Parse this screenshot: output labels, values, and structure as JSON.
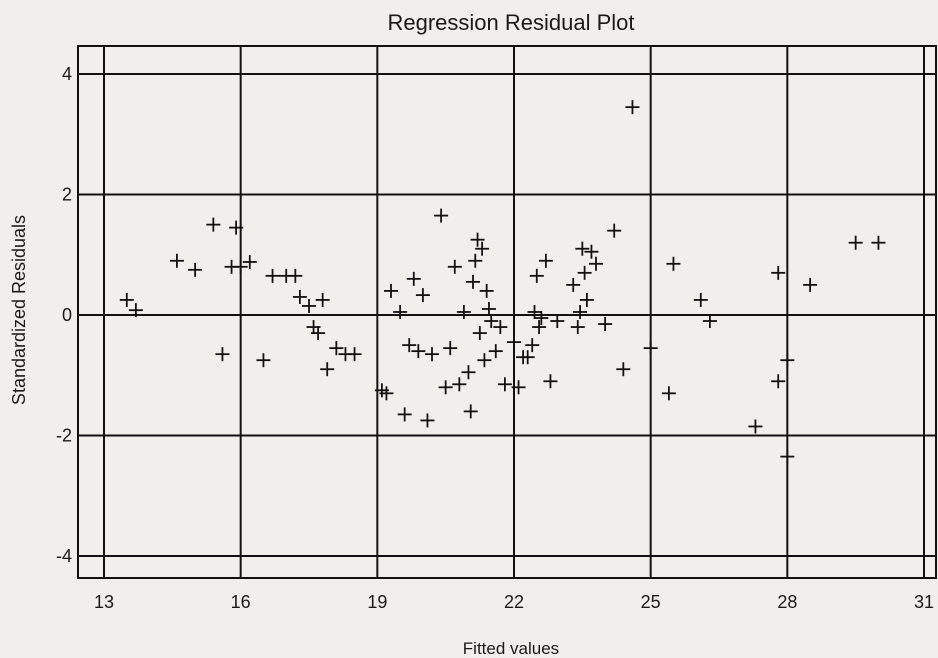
{
  "chart_data": {
    "type": "scatter",
    "title": "Regression Residual Plot",
    "xlabel": "Fitted values",
    "ylabel": "Standardized Residuals",
    "xlim": [
      13,
      31
    ],
    "ylim": [
      -4.8,
      4.8
    ],
    "xticks": [
      13,
      16,
      19,
      22,
      25,
      28,
      31
    ],
    "yticks": [
      -4,
      -2,
      0,
      2,
      4
    ],
    "grid": true,
    "marker": "plus",
    "colors": {
      "background": "#f1efeb",
      "ink": "#111111"
    },
    "points": [
      {
        "x": 13.5,
        "y": 0.25
      },
      {
        "x": 13.7,
        "y": 0.08
      },
      {
        "x": 14.6,
        "y": 0.9
      },
      {
        "x": 15.0,
        "y": 0.75
      },
      {
        "x": 15.4,
        "y": 1.5
      },
      {
        "x": 15.6,
        "y": -0.65
      },
      {
        "x": 15.8,
        "y": 0.8
      },
      {
        "x": 15.9,
        "y": 1.45
      },
      {
        "x": 16.0,
        "y": 0.8
      },
      {
        "x": 16.2,
        "y": 0.88
      },
      {
        "x": 16.5,
        "y": -0.75
      },
      {
        "x": 16.7,
        "y": 0.65
      },
      {
        "x": 17.0,
        "y": 0.65
      },
      {
        "x": 17.2,
        "y": 0.65
      },
      {
        "x": 17.3,
        "y": 0.3
      },
      {
        "x": 17.5,
        "y": 0.15
      },
      {
        "x": 17.6,
        "y": -0.2
      },
      {
        "x": 17.7,
        "y": -0.3
      },
      {
        "x": 17.8,
        "y": 0.25
      },
      {
        "x": 17.9,
        "y": -0.9
      },
      {
        "x": 18.1,
        "y": -0.55
      },
      {
        "x": 18.3,
        "y": -0.65
      },
      {
        "x": 18.5,
        "y": -0.65
      },
      {
        "x": 19.1,
        "y": -1.25
      },
      {
        "x": 19.2,
        "y": -1.3
      },
      {
        "x": 19.3,
        "y": 0.4
      },
      {
        "x": 19.5,
        "y": 0.05
      },
      {
        "x": 19.6,
        "y": -1.65
      },
      {
        "x": 19.7,
        "y": -0.5
      },
      {
        "x": 19.8,
        "y": 0.6
      },
      {
        "x": 19.9,
        "y": -0.6
      },
      {
        "x": 20.0,
        "y": 0.33
      },
      {
        "x": 20.1,
        "y": -1.75
      },
      {
        "x": 20.2,
        "y": -0.65
      },
      {
        "x": 20.4,
        "y": 1.65
      },
      {
        "x": 20.5,
        "y": -1.2
      },
      {
        "x": 20.6,
        "y": -0.55
      },
      {
        "x": 20.7,
        "y": 0.8
      },
      {
        "x": 20.8,
        "y": -1.15
      },
      {
        "x": 20.9,
        "y": 0.05
      },
      {
        "x": 21.0,
        "y": -0.95
      },
      {
        "x": 21.05,
        "y": -1.6
      },
      {
        "x": 21.1,
        "y": 0.55
      },
      {
        "x": 21.15,
        "y": 0.9
      },
      {
        "x": 21.2,
        "y": 1.25
      },
      {
        "x": 21.25,
        "y": -0.3
      },
      {
        "x": 21.3,
        "y": 1.1
      },
      {
        "x": 21.35,
        "y": -0.75
      },
      {
        "x": 21.4,
        "y": 0.4
      },
      {
        "x": 21.45,
        "y": 0.1
      },
      {
        "x": 21.5,
        "y": -0.1
      },
      {
        "x": 21.6,
        "y": -0.6
      },
      {
        "x": 21.7,
        "y": -0.2
      },
      {
        "x": 21.8,
        "y": -1.15
      },
      {
        "x": 22.0,
        "y": -0.45
      },
      {
        "x": 22.1,
        "y": -1.2
      },
      {
        "x": 22.2,
        "y": -0.7
      },
      {
        "x": 22.3,
        "y": -0.7
      },
      {
        "x": 22.4,
        "y": -0.5
      },
      {
        "x": 22.45,
        "y": 0.05
      },
      {
        "x": 22.5,
        "y": 0.65
      },
      {
        "x": 22.55,
        "y": -0.2
      },
      {
        "x": 22.6,
        "y": -0.05
      },
      {
        "x": 22.7,
        "y": 0.9
      },
      {
        "x": 22.8,
        "y": -1.1
      },
      {
        "x": 22.95,
        "y": -0.1
      },
      {
        "x": 23.3,
        "y": 0.5
      },
      {
        "x": 23.4,
        "y": -0.2
      },
      {
        "x": 23.45,
        "y": 0.05
      },
      {
        "x": 23.5,
        "y": 1.1
      },
      {
        "x": 23.55,
        "y": 0.7
      },
      {
        "x": 23.6,
        "y": 0.25
      },
      {
        "x": 23.7,
        "y": 1.05
      },
      {
        "x": 23.8,
        "y": 0.85
      },
      {
        "x": 24.0,
        "y": -0.15
      },
      {
        "x": 24.2,
        "y": 1.4
      },
      {
        "x": 24.4,
        "y": -0.9
      },
      {
        "x": 24.6,
        "y": 3.45
      },
      {
        "x": 25.0,
        "y": -0.55
      },
      {
        "x": 25.4,
        "y": -1.3
      },
      {
        "x": 25.5,
        "y": 0.85
      },
      {
        "x": 26.1,
        "y": 0.25
      },
      {
        "x": 26.3,
        "y": -0.1
      },
      {
        "x": 27.3,
        "y": -1.85
      },
      {
        "x": 27.8,
        "y": -1.1
      },
      {
        "x": 27.8,
        "y": 0.7
      },
      {
        "x": 28.0,
        "y": -0.75
      },
      {
        "x": 28.0,
        "y": -2.35
      },
      {
        "x": 28.5,
        "y": 0.5
      },
      {
        "x": 29.5,
        "y": 1.2
      },
      {
        "x": 30.0,
        "y": 1.2
      }
    ]
  }
}
